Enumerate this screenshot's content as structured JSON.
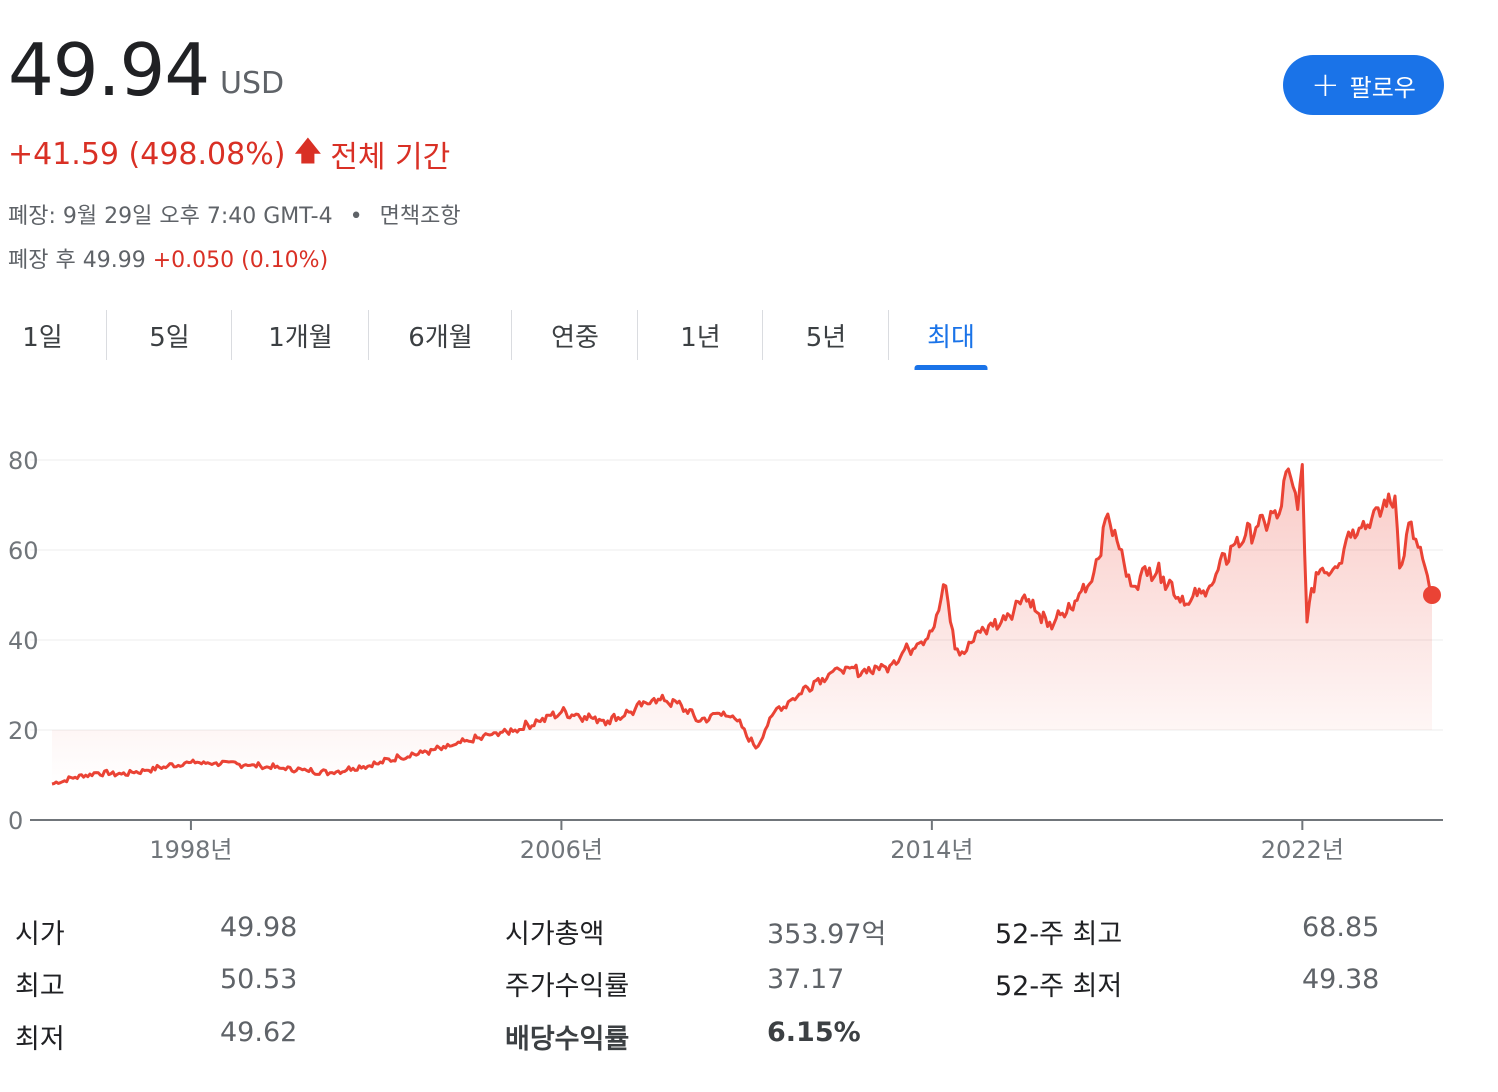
{
  "header": {
    "price": "49.94",
    "currency": "USD",
    "change": "+41.59 (498.08%)",
    "change_arrow": "🡅",
    "change_period": "전체 기간",
    "closed_info": "폐장: 9월 29일 오후 7:40 GMT-4",
    "bullet": "•",
    "disclaimer": "면책조항",
    "after_hours_label": "폐장 후 49.99",
    "after_hours_change": "+0.050 (0.10%)",
    "follow_plus": "+",
    "follow_label": "팔로우",
    "accent_color": "#1a73e8",
    "negative_color": "#d93025"
  },
  "tabs": [
    {
      "label": "1일"
    },
    {
      "label": "5일"
    },
    {
      "label": "1개월"
    },
    {
      "label": "6개월"
    },
    {
      "label": "연중"
    },
    {
      "label": "1년"
    },
    {
      "label": "5년"
    },
    {
      "label": "최대",
      "active": true
    }
  ],
  "chart_data": {
    "type": "area",
    "line_color": "#ea4335",
    "grid": true,
    "ylim": [
      0,
      80
    ],
    "yticks": [
      "0",
      "20",
      "40",
      "60",
      "80"
    ],
    "xticks": [
      {
        "label": "1998년",
        "year": 1998
      },
      {
        "label": "2006년",
        "year": 2006
      },
      {
        "label": "2014년",
        "year": 2014
      },
      {
        "label": "2022년",
        "year": 2022
      }
    ],
    "xlim": [
      1995.0,
      2024.8
    ],
    "series": [
      {
        "points": [
          [
            1995.0,
            8
          ],
          [
            1995.5,
            9.5
          ],
          [
            1996.0,
            10.5
          ],
          [
            1996.5,
            10.2
          ],
          [
            1997.0,
            11
          ],
          [
            1997.5,
            12
          ],
          [
            1998.0,
            12.8
          ],
          [
            1998.5,
            12.6
          ],
          [
            1999.0,
            12.5
          ],
          [
            1999.5,
            12
          ],
          [
            2000.0,
            11.5
          ],
          [
            2000.5,
            11
          ],
          [
            2001.0,
            10.5
          ],
          [
            2001.5,
            11.5
          ],
          [
            2002.0,
            12.5
          ],
          [
            2002.5,
            14
          ],
          [
            2003.0,
            15
          ],
          [
            2003.5,
            16
          ],
          [
            2004.0,
            17.5
          ],
          [
            2004.5,
            19
          ],
          [
            2005.0,
            20
          ],
          [
            2005.5,
            22
          ],
          [
            2006.0,
            24
          ],
          [
            2006.5,
            23
          ],
          [
            2007.0,
            22
          ],
          [
            2007.5,
            24
          ],
          [
            2008.0,
            27
          ],
          [
            2008.5,
            26
          ],
          [
            2009.0,
            22
          ],
          [
            2009.5,
            24
          ],
          [
            2009.8,
            22
          ],
          [
            2010.2,
            16
          ],
          [
            2010.6,
            24
          ],
          [
            2011.0,
            27
          ],
          [
            2011.5,
            31
          ],
          [
            2012.0,
            33.5
          ],
          [
            2012.5,
            33
          ],
          [
            2013.0,
            34
          ],
          [
            2013.5,
            38
          ],
          [
            2014.0,
            42
          ],
          [
            2014.3,
            52
          ],
          [
            2014.5,
            38
          ],
          [
            2014.7,
            37
          ],
          [
            2015.0,
            42
          ],
          [
            2015.5,
            44
          ],
          [
            2016.0,
            50
          ],
          [
            2016.5,
            43
          ],
          [
            2017.0,
            47
          ],
          [
            2017.5,
            55
          ],
          [
            2017.8,
            68
          ],
          [
            2018.0,
            62
          ],
          [
            2018.3,
            52
          ],
          [
            2018.7,
            56
          ],
          [
            2019.0,
            54
          ],
          [
            2019.5,
            48
          ],
          [
            2020.0,
            52
          ],
          [
            2020.5,
            61
          ],
          [
            2021.0,
            65
          ],
          [
            2021.5,
            68
          ],
          [
            2021.7,
            78
          ],
          [
            2021.9,
            69
          ],
          [
            2022.0,
            79
          ],
          [
            2022.1,
            44
          ],
          [
            2022.3,
            55
          ],
          [
            2022.8,
            57
          ],
          [
            2023.0,
            64
          ],
          [
            2023.5,
            67
          ],
          [
            2024.0,
            72
          ],
          [
            2024.1,
            56
          ],
          [
            2024.3,
            66
          ],
          [
            2024.6,
            58
          ],
          [
            2024.8,
            50
          ]
        ]
      }
    ]
  },
  "stats": [
    {
      "label": "시가",
      "value": "49.98"
    },
    {
      "label": "최고",
      "value": "50.53"
    },
    {
      "label": "최저",
      "value": "49.62"
    },
    {
      "label": "시가총액",
      "value": "353.97억"
    },
    {
      "label": "주가수익률",
      "value": "37.17"
    },
    {
      "label": "배당수익률",
      "value": "6.15%",
      "bold": true
    },
    {
      "label": "52-주 최고",
      "value": "68.85"
    },
    {
      "label": "52-주 최저",
      "value": "49.38"
    }
  ]
}
